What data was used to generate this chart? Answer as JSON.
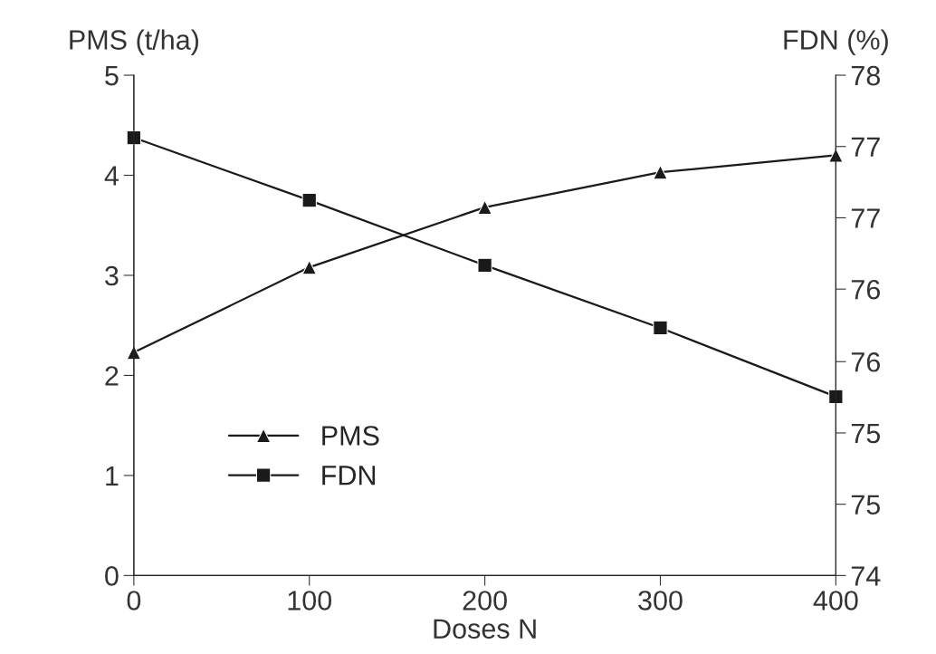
{
  "chart_data": {
    "type": "line",
    "xlabel": "Doses N",
    "ylabel": "PMS (t/ha)",
    "y2label": "FDN (%)",
    "x": [
      0,
      100,
      200,
      300,
      400
    ],
    "xlim": [
      0,
      400
    ],
    "xticks": [
      0,
      100,
      200,
      300,
      400
    ],
    "ylim": [
      0,
      5
    ],
    "yticks": [
      0,
      1,
      2,
      3,
      4,
      5
    ],
    "y2lim": [
      74,
      78
    ],
    "y2ticks": [
      74,
      {
        "value": 74.57,
        "label": "75"
      },
      {
        "value": 75.14,
        "label": "75"
      },
      {
        "value": 75.71,
        "label": "76"
      },
      {
        "value": 76.29,
        "label": "76"
      },
      {
        "value": 76.86,
        "label": "77"
      },
      {
        "value": 77.43,
        "label": "77"
      },
      78
    ],
    "series": [
      {
        "name": "PMS",
        "color": "#1a1a1a",
        "marker": "triangle",
        "values": [
          2.23,
          3.08,
          3.68,
          4.03,
          4.2
        ]
      },
      {
        "name": "FDN",
        "color": "#1a1a1a",
        "marker": "square",
        "axis": "y2",
        "values": [
          77.5,
          77.0,
          76.48,
          75.98,
          75.43
        ]
      }
    ],
    "legend": "bottom left",
    "grid": false,
    "line_style": "solid"
  }
}
